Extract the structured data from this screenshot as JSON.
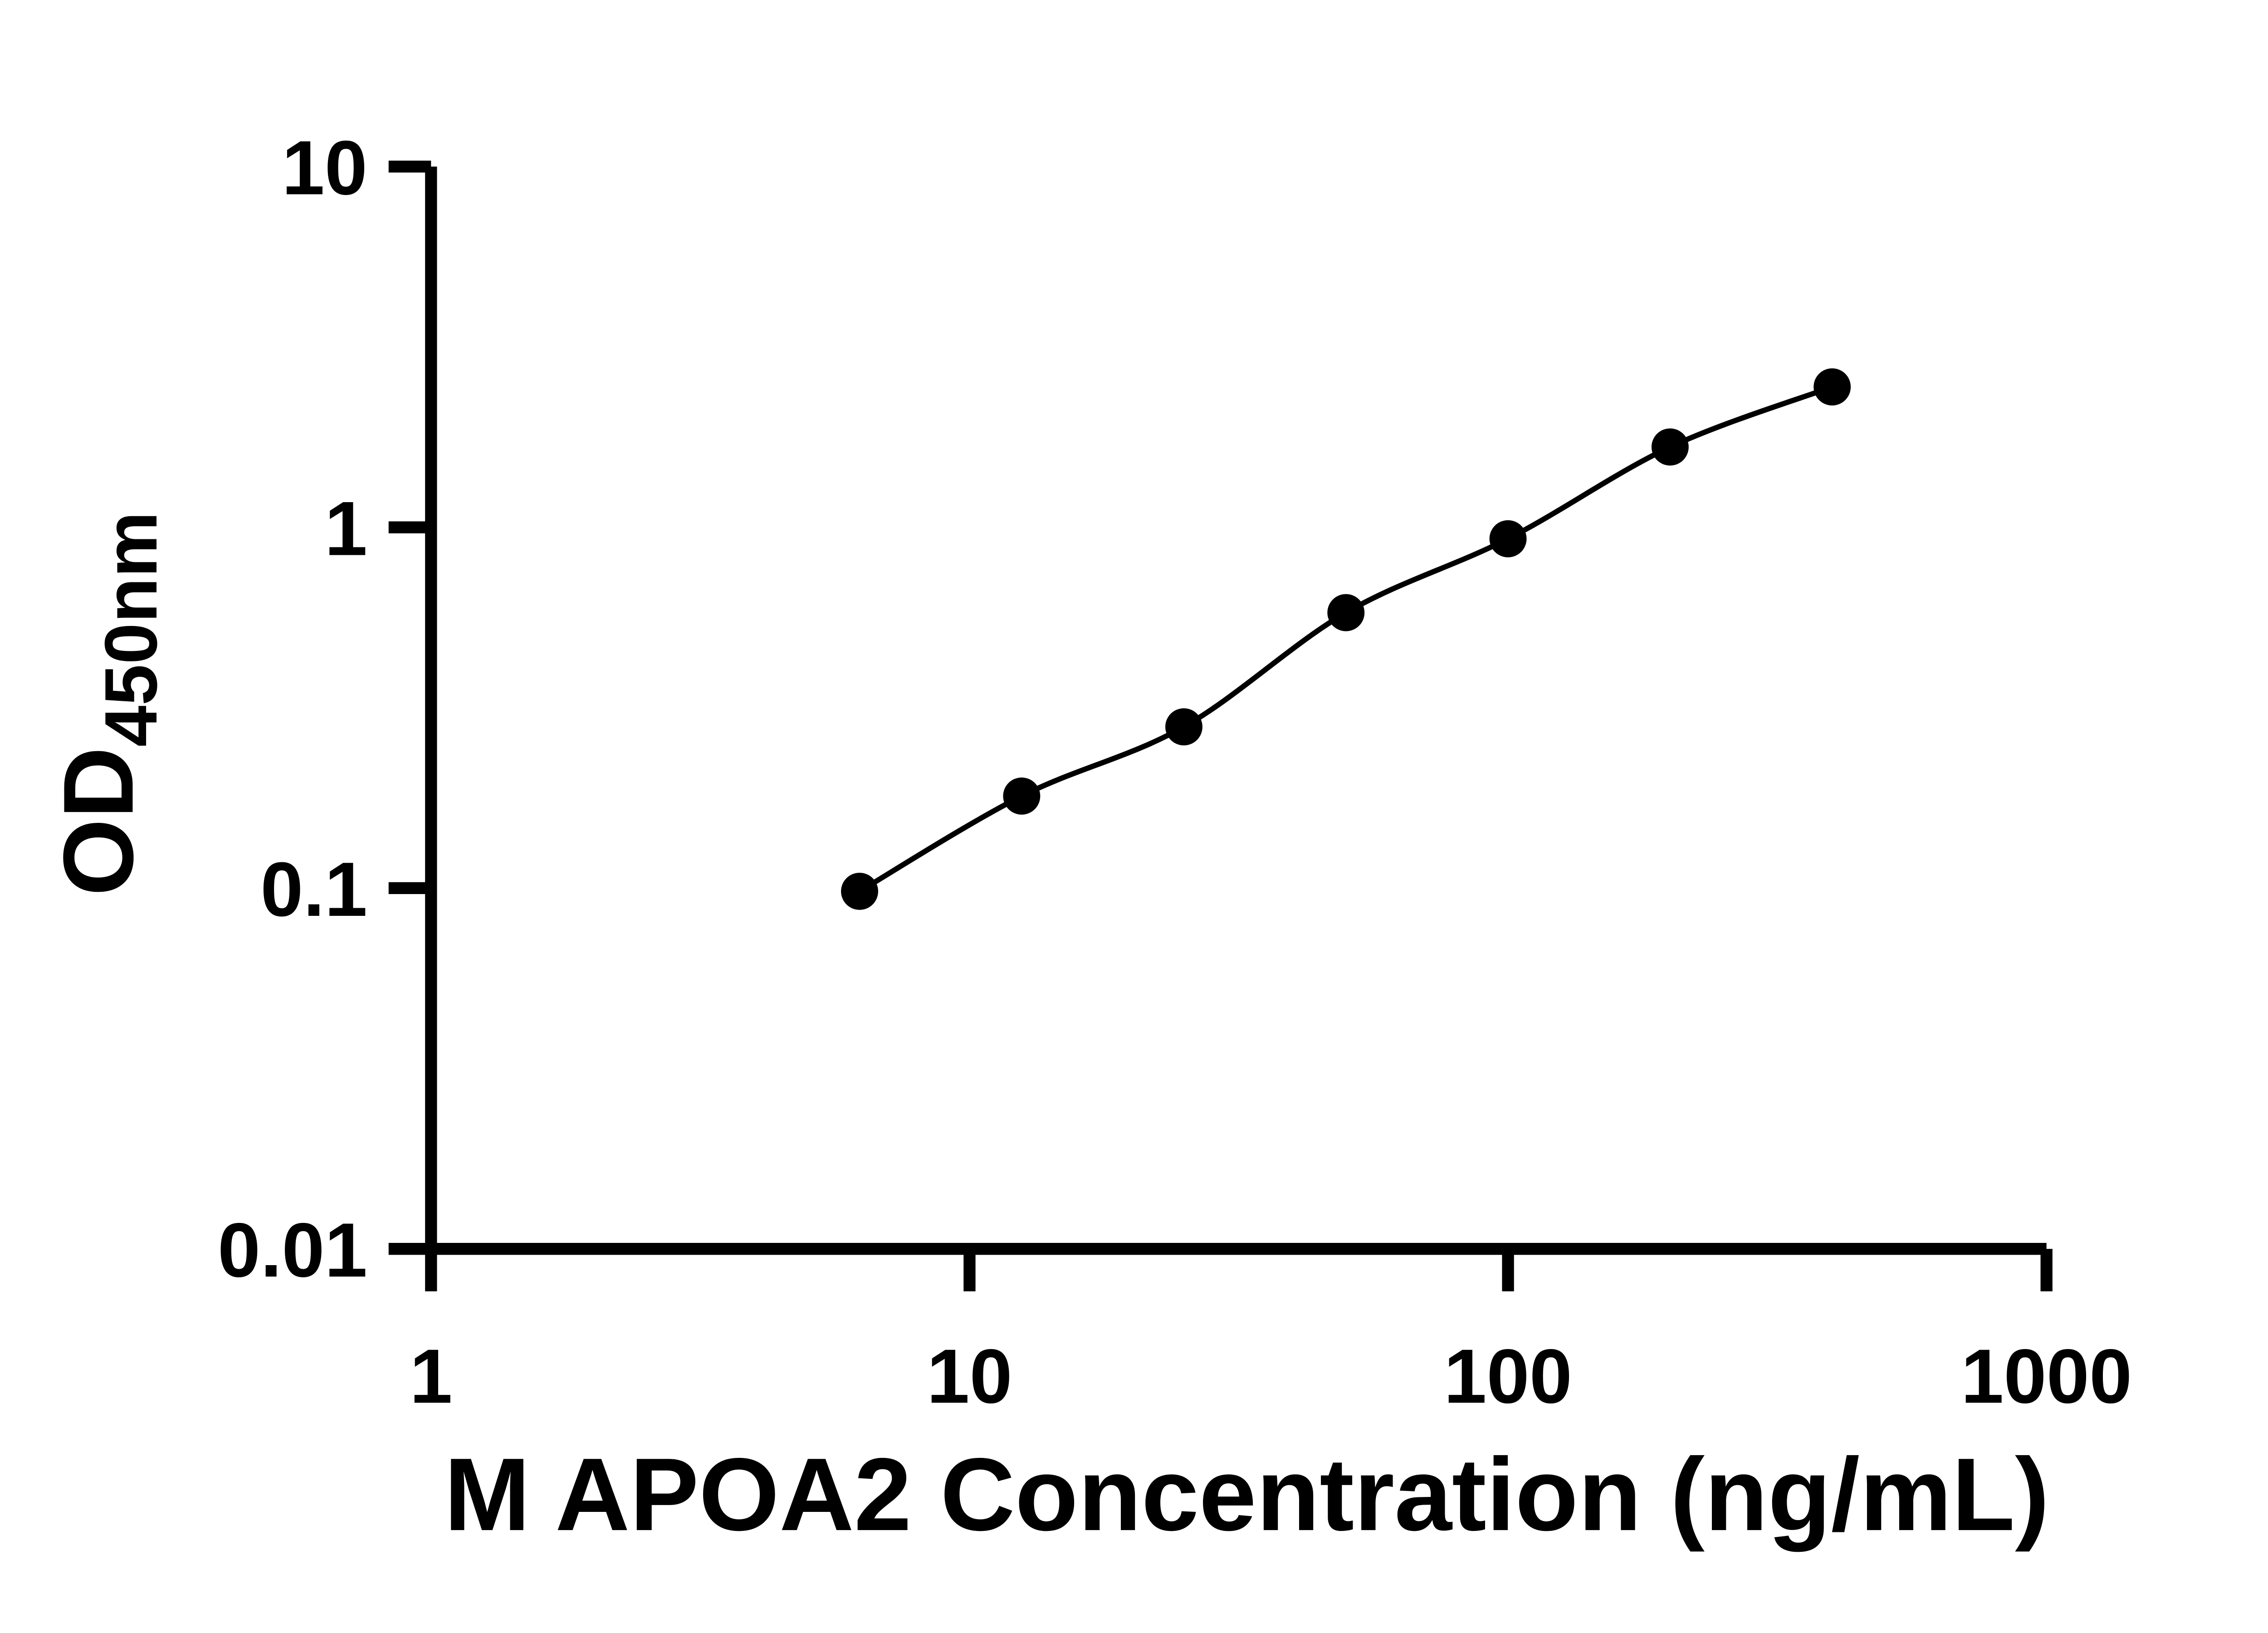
{
  "chart_data": {
    "type": "scatter",
    "title": "",
    "xlabel": "M APOA2 Concentration (ng/mL)",
    "ylabel": "OD",
    "ylabel_subscript": "450nm",
    "x_scale": "log",
    "y_scale": "log",
    "xlim": [
      1,
      1000
    ],
    "ylim": [
      0.01,
      10
    ],
    "x_ticks": [
      1,
      10,
      100,
      1000
    ],
    "y_ticks": [
      0.01,
      0.1,
      1,
      10
    ],
    "grid": false,
    "legend": false,
    "x": [
      6.25,
      12.5,
      25,
      50,
      100,
      200,
      400
    ],
    "y": [
      0.098,
      0.18,
      0.28,
      0.58,
      0.93,
      1.67,
      2.45
    ],
    "marker": "circle",
    "fit_line": true,
    "ink_color": "#000000",
    "background_color": "#ffffff"
  }
}
